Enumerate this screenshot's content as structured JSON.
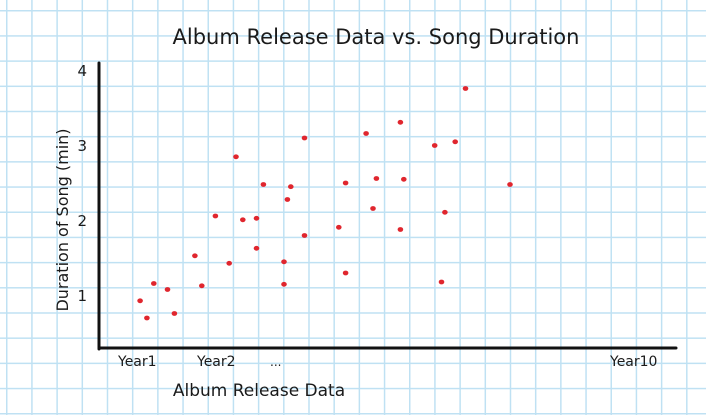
{
  "chart_data": {
    "type": "scatter",
    "title": "Album Release Data vs. Song Duration",
    "xlabel": "Album Release Data",
    "ylabel": "Duration of Song (min)",
    "x_tick_labels": [
      "Year1",
      "Year2",
      "...",
      "Year10"
    ],
    "y_ticks": [
      1,
      2,
      3,
      4
    ],
    "xlim": [
      0,
      10
    ],
    "ylim": [
      0,
      4
    ],
    "grid": true,
    "point_color": "#e0262e",
    "axis_color": "#111111",
    "points": [
      {
        "x": 0.6,
        "y": 0.95
      },
      {
        "x": 0.7,
        "y": 0.72
      },
      {
        "x": 0.8,
        "y": 1.18
      },
      {
        "x": 1.0,
        "y": 1.1
      },
      {
        "x": 1.1,
        "y": 0.78
      },
      {
        "x": 1.4,
        "y": 1.55
      },
      {
        "x": 1.5,
        "y": 1.15
      },
      {
        "x": 1.7,
        "y": 2.08
      },
      {
        "x": 1.9,
        "y": 1.45
      },
      {
        "x": 2.0,
        "y": 2.87
      },
      {
        "x": 2.1,
        "y": 2.03
      },
      {
        "x": 2.3,
        "y": 2.05
      },
      {
        "x": 2.3,
        "y": 1.65
      },
      {
        "x": 2.4,
        "y": 2.5
      },
      {
        "x": 2.7,
        "y": 1.47
      },
      {
        "x": 2.7,
        "y": 1.17
      },
      {
        "x": 2.75,
        "y": 2.3
      },
      {
        "x": 2.8,
        "y": 2.47
      },
      {
        "x": 3.0,
        "y": 3.12
      },
      {
        "x": 3.0,
        "y": 1.82
      },
      {
        "x": 3.5,
        "y": 1.93
      },
      {
        "x": 3.6,
        "y": 2.52
      },
      {
        "x": 3.6,
        "y": 1.32
      },
      {
        "x": 3.9,
        "y": 3.18
      },
      {
        "x": 4.0,
        "y": 2.18
      },
      {
        "x": 4.05,
        "y": 2.58
      },
      {
        "x": 4.4,
        "y": 1.9
      },
      {
        "x": 4.4,
        "y": 3.33
      },
      {
        "x": 4.45,
        "y": 2.57
      },
      {
        "x": 4.9,
        "y": 3.02
      },
      {
        "x": 5.0,
        "y": 1.2
      },
      {
        "x": 5.05,
        "y": 2.13
      },
      {
        "x": 5.2,
        "y": 3.07
      },
      {
        "x": 5.35,
        "y": 3.78
      },
      {
        "x": 6.0,
        "y": 2.5
      }
    ]
  }
}
